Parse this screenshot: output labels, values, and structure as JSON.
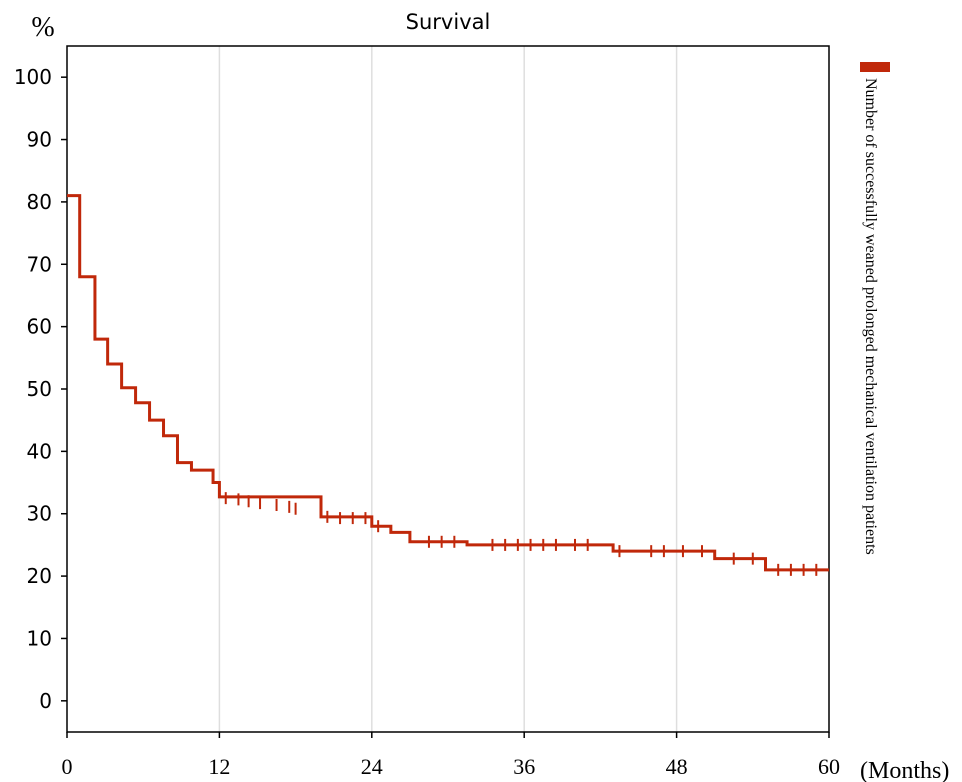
{
  "chart_data": {
    "type": "line",
    "title": "Survival",
    "ylabel": "%",
    "xlabel": "(Months)",
    "xlim": [
      0,
      60
    ],
    "ylim": [
      -5,
      105
    ],
    "x_ticks": [
      "0",
      "12",
      "24",
      "36",
      "48",
      "60"
    ],
    "y_ticks": [
      "0",
      "10",
      "20",
      "30",
      "40",
      "50",
      "60",
      "70",
      "80",
      "90",
      "100"
    ],
    "grid": "vertical",
    "legend_position": "right (vertical)",
    "series": [
      {
        "name": "Number of successfully weaned prolonged mechanical ventilation patients",
        "color": "#C0280A",
        "step": true,
        "x": [
          0,
          1,
          2.2,
          3.2,
          4.3,
          5.4,
          6.5,
          7.6,
          8.7,
          9.8,
          11.5,
          12,
          20,
          24,
          25.5,
          27,
          31.5,
          43,
          51,
          55,
          60
        ],
        "y": [
          81,
          68,
          58,
          54,
          50.2,
          47.8,
          45,
          42.5,
          38.2,
          37,
          35,
          32.7,
          29.5,
          28,
          27,
          25.5,
          25,
          24,
          22.8,
          21,
          21
        ],
        "censored": [
          {
            "x": 12.5,
            "y": 32.5
          },
          {
            "x": 13.5,
            "y": 32.3
          },
          {
            "x": 14.3,
            "y": 32
          },
          {
            "x": 15.2,
            "y": 31.7
          },
          {
            "x": 16.5,
            "y": 31.4
          },
          {
            "x": 17.5,
            "y": 31.1
          },
          {
            "x": 18,
            "y": 30.8
          },
          {
            "x": 20.5,
            "y": 29.5
          },
          {
            "x": 21.5,
            "y": 29.3
          },
          {
            "x": 22.5,
            "y": 29.3
          },
          {
            "x": 23.5,
            "y": 29.3
          },
          {
            "x": 24.5,
            "y": 28
          },
          {
            "x": 28.5,
            "y": 25.5
          },
          {
            "x": 29.5,
            "y": 25.5
          },
          {
            "x": 30.5,
            "y": 25.5
          },
          {
            "x": 33.5,
            "y": 25
          },
          {
            "x": 34.5,
            "y": 25
          },
          {
            "x": 35.5,
            "y": 25
          },
          {
            "x": 36.5,
            "y": 25
          },
          {
            "x": 37.5,
            "y": 25
          },
          {
            "x": 38.5,
            "y": 25
          },
          {
            "x": 40,
            "y": 25
          },
          {
            "x": 41,
            "y": 25
          },
          {
            "x": 43.5,
            "y": 24
          },
          {
            "x": 46,
            "y": 24
          },
          {
            "x": 47,
            "y": 24
          },
          {
            "x": 48.5,
            "y": 24
          },
          {
            "x": 50,
            "y": 24
          },
          {
            "x": 52.5,
            "y": 22.8
          },
          {
            "x": 54,
            "y": 22.8
          },
          {
            "x": 56,
            "y": 21
          },
          {
            "x": 57,
            "y": 21
          },
          {
            "x": 58,
            "y": 21
          },
          {
            "x": 59,
            "y": 21
          }
        ]
      }
    ]
  }
}
